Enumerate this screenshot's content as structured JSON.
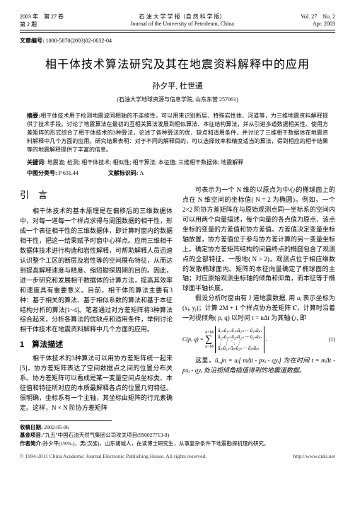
{
  "header": {
    "left_line1": "2003 年　第 27 卷",
    "left_line2": "第 2 期",
    "center_line1": "石 油 大 学 学 报（自 然 科 学 版）",
    "center_line2": "Journal of the University of Petroleum, China",
    "right_line1": "Vol. 27　No. 2",
    "right_line2": "Apr. 2003"
  },
  "article_code_label": "文章编号:",
  "article_code": "1000-5870(2003)02-0032-04",
  "title": "相干体技术算法研究及其在地震资料解释中的应用",
  "authors": "孙夕平, 杜世通",
  "affiliation": "(石油大学地球资源与信息学院, 山东东营 257061)",
  "abstract": {
    "label": "摘要:",
    "text": "相干体技术用于检测地震波同相轴的不连续性，可以用来识别断层、特殊岩性体、河道等，为三维地震资料解释提供了技术手段。讨论了地震算法在最初的互相关算法发展到相似算法、本征结构算法，并从引进多道数据相关性、使用方差矩阵的形式综合了相干体技术的3种算法，论述了各种算法的优、缺点和适用条件，并讨论了三维相干数据体在地震资料解释中几个方面的应用。研究结果表明：对于不同的解释目的，可以选择效率和精度适当的算法，得到相应的相干结果等的地震解释提供了丰富的信息。"
  },
  "keywords": {
    "label": "关键词:",
    "text": "地震波; 检测; 相干体技术; 相似性; 相干算法; 本征值; 三维相干数据体; 地震解释"
  },
  "classification": {
    "label1": "中图分类号:",
    "value1": "P 631.44",
    "label2": "文献标识码:",
    "value2": "A"
  },
  "left_column": {
    "intro_heading": "引　言",
    "intro_para": "相干体技术的基本原理是在偏移后的三维数据体中，对每一道每一个样点求得与周围数据的相干性，形成一个表征相干性的三维数据体，即计算时窗内的数据相干性，把这一结果赋予时窗中心样点。应用三维相干数据体技术进行构造和岩性解释，可帮助解释人员迅速认识整个工区的断层及岩性等的空间展布特征，从而达到提高解释速度与精度、缩短勘探周期的目的。因此，进一步研究和发展相干数据体的计算方法，提高其效率和速度具有重要意义。目前，相干体的算法主要有3种：基于相关的算法、基于相似系数的算法和基于本征结构分析的算法[1~4]。笔者通过对方差矩阵将3种算法综合起来，分析各算法的优缺点和适用条件，举例讨论相干体技术在地震资料解释中几个方面的应用。",
    "sec1_heading": "1　算法描述",
    "sec1_para": "相干体技术的3种算法可以用协方差矩阵统一起来[5]。协方差矩阵表达了空间数据点之间的位置分布关系。协方差矩阵可以看成是某一变量空间点坐标类、本征值和特征所对应的本质最解释各点的位置几何特征。很明确，坐标系有一个主轴，其坐标由矩阵的行元素确定。这样，N × N 阶协方差矩阵"
  },
  "right_column": {
    "para1": "可表示为一个 N 维的以原点为中心的椭球面上的点在 N 维空间的坐标值( N = 2 为椭圆)。例如，一个 2×2 阶协方差矩阵在与原始观测点同一坐标系的空间内可以用两个向量描述，每个向量的各点值为原点、该点坐标的变量的方差值和协方差值。方差值决定变量坐标轴放置，协方差值位于参与协方差计算的另一变量坐标上。确定协方差矩阵结构的间最终点的椭圆包含了观测点的全部特征。一般地( N > 2)，观测点位于相应维数的发散椭球面内。矩阵的本征向量确定了椭球面的主轴；对应原始观测坐标轴的倾角和仰角，而本征等于椭球面半轴长度。",
    "para2_prefix": "假设分析时窗由有 J 道地震数据, 用",
    "uj": "uⱼ",
    "para2_mid": "表示坐标为(xⱼ, yⱼ)；计算 2M + 1 个样点协方差矩阵 ",
    "C_sym": "C",
    "para2_mid2": "，计算时沿着一对视倾角( p, q) 以时间 t = nΔt 为其轴心, 即",
    "eq_lhs": "C(p, q) =",
    "eq_num": "(1)",
    "para3_prefix": "这里，",
    "para3": "ū_jn = uⱼ[ mΔt - pxⱼ - qyⱼ] 为在时间 t = mΔt - pxⱼ - qyⱼ 处沿视倾角插值得到的地震道数据。"
  },
  "matrix": {
    "r1": "ū₁ₙū₁ₙ  ū₁ₙū₂ₙ  ···  ū₁ₙūⱼₙ",
    "r2": "ū₂ₙū₁ₙ  ū₂ₙū₂ₙ  ···  ū₂ₙūⱼₙ",
    "r3": "⋮        ⋮        ⋱   ⋮",
    "r4": "ūⱼₙū₁ₙ  ūⱼₙū₂ₙ  ···  ūⱼₙūⱼₙ"
  },
  "sigma_top": "n+M",
  "sigma_bot": "n−M",
  "footnotes": {
    "recv_label": "收稿日期:",
    "recv": "2002-05-06",
    "fund_label": "基金项目:",
    "fund": "\"九五\"中国石油天然气集团公司攻关项目(990027713-8)",
    "auth_label": "作者简介:",
    "auth": "孙夕平(1976-)，男(汉族)，山东诸城人，在读博士研究生，从事复杂条件下地震勘探机理的研究。"
  },
  "bottom": {
    "left": "© 1994-2011 China Academic Journal Electronic Publishing House. All rights reserved.",
    "right": "http://www.cnki.net"
  }
}
